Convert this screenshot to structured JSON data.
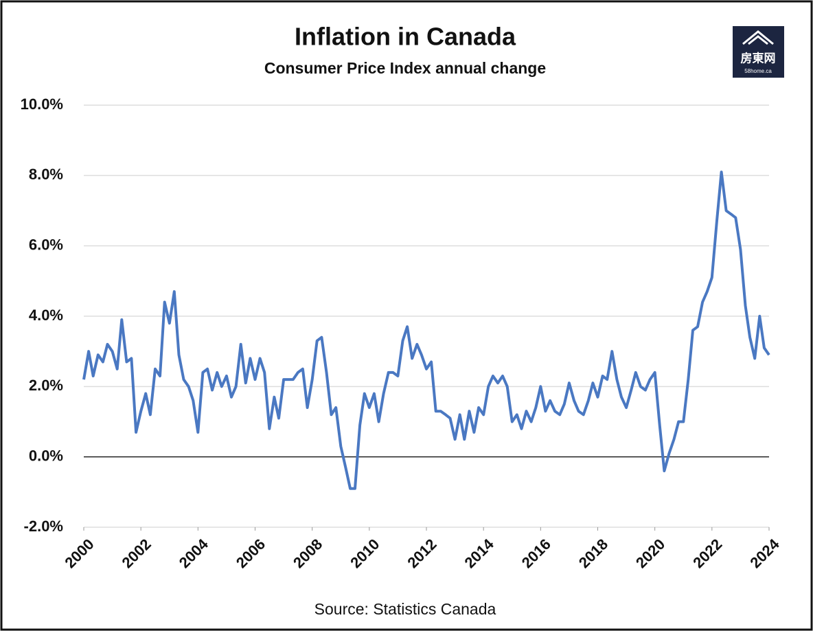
{
  "logo": {
    "text": "房東网",
    "subtext": "58home.ca"
  },
  "chart_data": {
    "type": "line",
    "title": "Inflation in Canada",
    "subtitle": "Consumer Price Index annual change",
    "caption": "Source: Statistics Canada",
    "color": "#4a78c2",
    "grid": true,
    "xlim": [
      2000,
      2024
    ],
    "xticks": [
      2000,
      2002,
      2004,
      2006,
      2008,
      2010,
      2012,
      2014,
      2016,
      2018,
      2020,
      2022,
      2024
    ],
    "ylim": [
      -2,
      10
    ],
    "yticks": [
      {
        "value": -2,
        "label": "-2.0%"
      },
      {
        "value": 0,
        "label": "0.0%"
      },
      {
        "value": 2,
        "label": "2.0%"
      },
      {
        "value": 4,
        "label": "4.0%"
      },
      {
        "value": 6,
        "label": "6.0%"
      },
      {
        "value": 8,
        "label": "8.0%"
      },
      {
        "value": 10,
        "label": "10.0%"
      }
    ],
    "x": [
      2000,
      2000.17,
      2000.33,
      2000.5,
      2000.67,
      2000.83,
      2001,
      2001.17,
      2001.33,
      2001.5,
      2001.67,
      2001.83,
      2002,
      2002.17,
      2002.33,
      2002.5,
      2002.67,
      2002.83,
      2003,
      2003.17,
      2003.33,
      2003.5,
      2003.67,
      2003.83,
      2004,
      2004.17,
      2004.33,
      2004.5,
      2004.67,
      2004.83,
      2005,
      2005.17,
      2005.33,
      2005.5,
      2005.67,
      2005.83,
      2006,
      2006.17,
      2006.33,
      2006.5,
      2006.67,
      2006.83,
      2007,
      2007.17,
      2007.33,
      2007.5,
      2007.67,
      2007.83,
      2008,
      2008.17,
      2008.33,
      2008.5,
      2008.67,
      2008.83,
      2009,
      2009.17,
      2009.33,
      2009.5,
      2009.67,
      2009.83,
      2010,
      2010.17,
      2010.33,
      2010.5,
      2010.67,
      2010.83,
      2011,
      2011.17,
      2011.33,
      2011.5,
      2011.67,
      2011.83,
      2012,
      2012.17,
      2012.33,
      2012.5,
      2012.67,
      2012.83,
      2013,
      2013.17,
      2013.33,
      2013.5,
      2013.67,
      2013.83,
      2014,
      2014.17,
      2014.33,
      2014.5,
      2014.67,
      2014.83,
      2015,
      2015.17,
      2015.33,
      2015.5,
      2015.67,
      2015.83,
      2016,
      2016.17,
      2016.33,
      2016.5,
      2016.67,
      2016.83,
      2017,
      2017.17,
      2017.33,
      2017.5,
      2017.67,
      2017.83,
      2018,
      2018.17,
      2018.33,
      2018.5,
      2018.67,
      2018.83,
      2019,
      2019.17,
      2019.33,
      2019.5,
      2019.67,
      2019.83,
      2020,
      2020.17,
      2020.33,
      2020.5,
      2020.67,
      2020.83,
      2021,
      2021.17,
      2021.33,
      2021.5,
      2021.67,
      2021.83,
      2022,
      2022.17,
      2022.33,
      2022.5,
      2022.67,
      2022.83,
      2023,
      2023.17,
      2023.33,
      2023.5,
      2023.67,
      2023.83,
      2024
    ],
    "values": [
      2.2,
      3.0,
      2.3,
      2.9,
      2.7,
      3.2,
      3.0,
      2.5,
      3.9,
      2.7,
      2.8,
      0.7,
      1.3,
      1.8,
      1.2,
      2.5,
      2.3,
      4.4,
      3.8,
      4.7,
      2.9,
      2.2,
      2.0,
      1.6,
      0.7,
      2.4,
      2.5,
      1.9,
      2.4,
      2.0,
      2.3,
      1.7,
      2.0,
      3.2,
      2.1,
      2.8,
      2.2,
      2.8,
      2.4,
      0.8,
      1.7,
      1.1,
      2.2,
      2.2,
      2.2,
      2.4,
      2.5,
      1.4,
      2.2,
      3.3,
      3.4,
      2.4,
      1.2,
      1.4,
      0.3,
      -0.3,
      -0.9,
      -0.9,
      0.9,
      1.8,
      1.4,
      1.8,
      1.0,
      1.8,
      2.4,
      2.4,
      2.3,
      3.3,
      3.7,
      2.8,
      3.2,
      2.9,
      2.5,
      2.7,
      1.3,
      1.3,
      1.2,
      1.1,
      0.5,
      1.2,
      0.5,
      1.3,
      0.7,
      1.4,
      1.2,
      2.0,
      2.3,
      2.1,
      2.3,
      2.0,
      1.0,
      1.2,
      0.8,
      1.3,
      1.0,
      1.4,
      2.0,
      1.3,
      1.6,
      1.3,
      1.2,
      1.5,
      2.1,
      1.6,
      1.3,
      1.2,
      1.6,
      2.1,
      1.7,
      2.3,
      2.2,
      3.0,
      2.2,
      1.7,
      1.4,
      1.9,
      2.4,
      2.0,
      1.9,
      2.2,
      2.4,
      0.9,
      -0.4,
      0.1,
      0.5,
      1.0,
      1.0,
      2.2,
      3.6,
      3.7,
      4.4,
      4.7,
      5.1,
      6.7,
      8.1,
      7.0,
      6.9,
      6.8,
      5.9,
      4.3,
      3.4,
      2.8,
      4.0,
      3.1,
      2.9
    ]
  }
}
